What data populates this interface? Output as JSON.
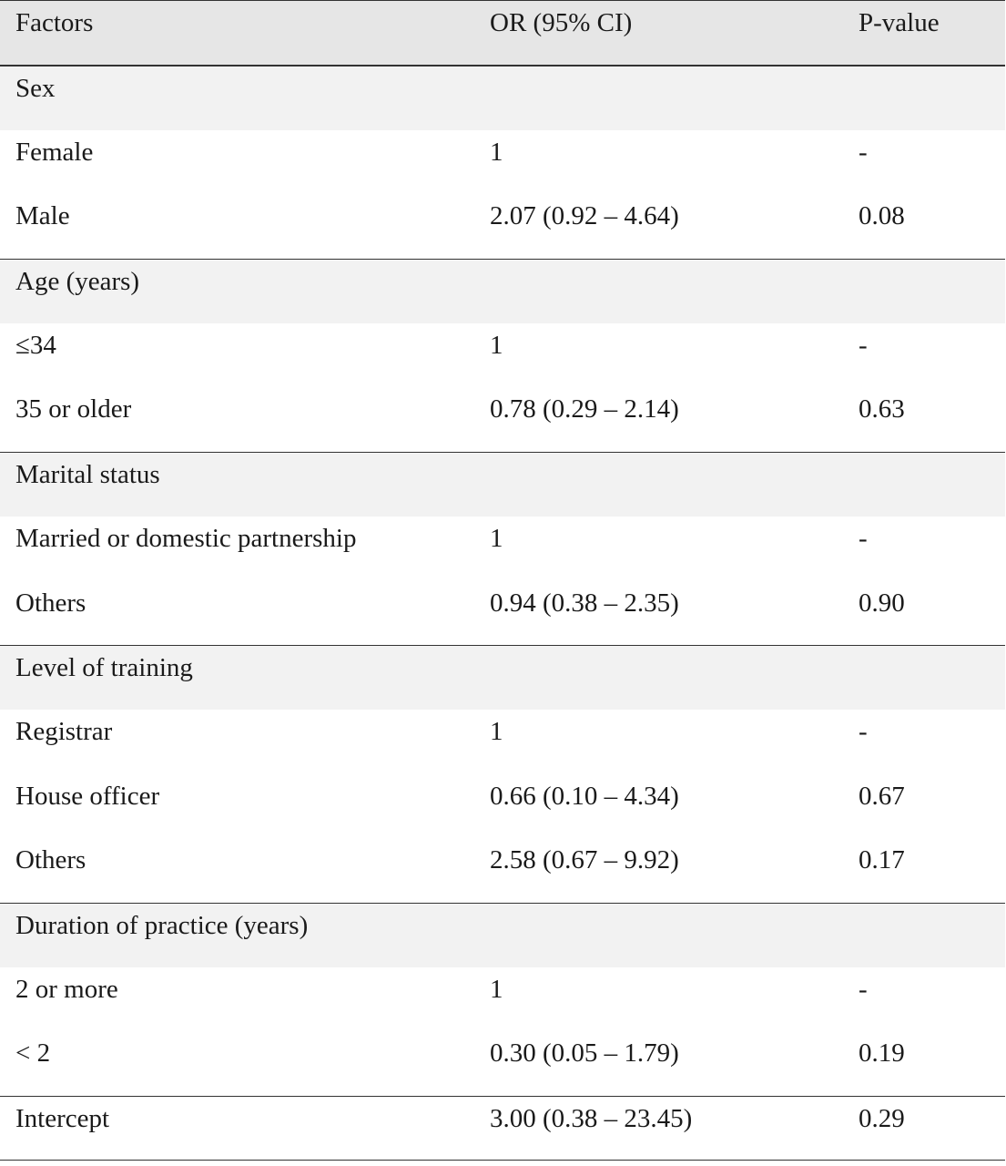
{
  "header": {
    "factors": "Factors",
    "or": "OR (95% CI)",
    "p": "P-value"
  },
  "rows": [
    {
      "factor": "Sex",
      "or": "",
      "p": "",
      "type": "group"
    },
    {
      "factor": "Female",
      "or": "1",
      "p": "-",
      "type": "item"
    },
    {
      "factor": "Male",
      "or": "2.07 (0.92 – 4.64)",
      "p": "0.08",
      "type": "item"
    },
    {
      "factor": "Age (years)",
      "or": "",
      "p": "",
      "type": "group"
    },
    {
      "factor": "≤34",
      "or": "1",
      "p": "-",
      "type": "item"
    },
    {
      "factor": "35 or older",
      "or": "0.78 (0.29 – 2.14)",
      "p": "0.63",
      "type": "item"
    },
    {
      "factor": "Marital status",
      "or": "",
      "p": "",
      "type": "group"
    },
    {
      "factor": "Married or domestic partnership",
      "or": "1",
      "p": "-",
      "type": "item"
    },
    {
      "factor": "Others",
      "or": "0.94 (0.38 – 2.35)",
      "p": "0.90",
      "type": "item"
    },
    {
      "factor": "Level of training",
      "or": "",
      "p": "",
      "type": "group"
    },
    {
      "factor": "Registrar",
      "or": "1",
      "p": "-",
      "type": "item"
    },
    {
      "factor": "House officer",
      "or": "0.66 (0.10 – 4.34)",
      "p": "0.67",
      "type": "item"
    },
    {
      "factor": "Others",
      "or": "2.58 (0.67 – 9.92)",
      "p": "0.17",
      "type": "item"
    },
    {
      "factor": "Duration of practice (years)",
      "or": "",
      "p": "",
      "type": "group"
    },
    {
      "factor": "2 or more",
      "or": "1",
      "p": "-",
      "type": "item"
    },
    {
      "factor": "< 2",
      "or": "0.30 (0.05 – 1.79)",
      "p": "0.19",
      "type": "item"
    },
    {
      "factor": "Intercept",
      "or": "3.00 (0.38 – 23.45)",
      "p": "0.29",
      "type": "intercept"
    }
  ]
}
